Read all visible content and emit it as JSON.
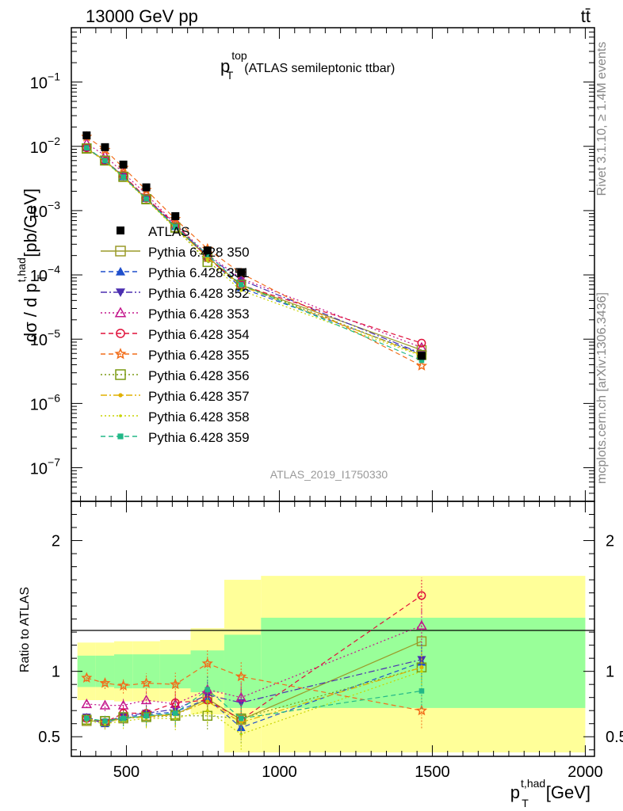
{
  "header": {
    "left": "13000 GeV pp",
    "right": "tt̄"
  },
  "side": {
    "rivet": "Rivet 3.1.10, ≥ 1.4M events",
    "mcplots": "mcplots.cern.ch [arXiv:1306.3436]"
  },
  "chart_data": {
    "type": "line",
    "title": "p_T^top (ATLAS semileptonic ttbar)",
    "title_main": "p",
    "title_sub": "T",
    "title_sup": "top",
    "title_rest": "(ATLAS semileptonic ttbar)",
    "analysis_label": "ATLAS_2019_I1750330",
    "xlabel": "p_T^{t,had} [GeV]",
    "xlabel_main": "p",
    "xlabel_sub": "T",
    "xlabel_sup": "t,had",
    "xlabel_unit": "[GeV]",
    "ylabel": "dσ / d p_T^{t,had} [pb/GeV]",
    "ylabel_pre": "dσ / d p",
    "ylabel_sub": "T",
    "ylabel_sup": "t,had",
    "ylabel_unit": "[pb/GeV]",
    "ratio_ylabel": "Ratio to ATLAS",
    "xlim": [
      320,
      2030
    ],
    "ylim_log": [
      3e-08,
      0.7
    ],
    "ratio_ylim": [
      0.35,
      2.3
    ],
    "x_ticks": [
      500,
      1000,
      1500,
      2000
    ],
    "x_tick_labels": [
      "500",
      "1000",
      "1500",
      "2000"
    ],
    "y_ticks": [
      1e-07,
      1e-06,
      1e-05,
      0.0001,
      0.001,
      0.01,
      0.1
    ],
    "y_tick_bases": [
      "10",
      "10",
      "10",
      "10",
      "10",
      "10",
      "10"
    ],
    "y_tick_exps": [
      "−7",
      "−6",
      "−5",
      "−4",
      "−3",
      "−2",
      "−1"
    ],
    "ratio_ticks": [
      0.5,
      1,
      2
    ],
    "ratio_tick_labels": [
      "0.5",
      "1",
      "2"
    ],
    "bin_edges": [
      340,
      400,
      460,
      520,
      610,
      710,
      820,
      940,
      2000
    ],
    "x": [
      370,
      430,
      490,
      565,
      660,
      765,
      875,
      1465
    ],
    "data": {
      "name": "ATLAS",
      "values": [
        0.0148,
        0.0097,
        0.0052,
        0.0023,
        0.00082,
        0.00024,
        0.00011,
        5.5e-06
      ],
      "band_inner": [
        [
          0.88,
          1.12
        ],
        [
          0.88,
          1.12
        ],
        [
          0.87,
          1.13
        ],
        [
          0.87,
          1.13
        ],
        [
          0.87,
          1.13
        ],
        [
          0.84,
          1.16
        ],
        [
          0.72,
          1.28
        ],
        [
          0.72,
          1.41
        ],
        [
          0.72,
          1.41
        ]
      ],
      "band_outer": [
        [
          0.78,
          1.22
        ],
        [
          0.78,
          1.22
        ],
        [
          0.77,
          1.23
        ],
        [
          0.77,
          1.23
        ],
        [
          0.77,
          1.24
        ],
        [
          0.67,
          1.33
        ],
        [
          0.38,
          1.7
        ],
        [
          0.38,
          1.73
        ],
        [
          0.38,
          1.73
        ]
      ]
    },
    "series": [
      {
        "name": "Pythia 6.428 350",
        "color": "#9a9a28",
        "marker": "square-open",
        "dash": "solid",
        "ratio": [
          0.62,
          0.62,
          0.64,
          0.66,
          0.67,
          0.79,
          0.63,
          1.23
        ]
      },
      {
        "name": "Pythia 6.428 351",
        "color": "#1f4fcc",
        "marker": "triangle-up",
        "dash": "dashed",
        "ratio": [
          0.64,
          0.6,
          0.65,
          0.67,
          0.69,
          0.79,
          0.57,
          1.07
        ]
      },
      {
        "name": "Pythia 6.428 352",
        "color": "#4b2fb0",
        "marker": "triangle-down",
        "dash": "dashdot",
        "ratio": [
          0.65,
          0.61,
          0.66,
          0.68,
          0.71,
          0.82,
          0.76,
          1.09
        ]
      },
      {
        "name": "Pythia 6.428 353",
        "color": "#c4168c",
        "marker": "triangle-open",
        "dash": "dotted",
        "ratio": [
          0.75,
          0.74,
          0.74,
          0.78,
          0.75,
          0.86,
          0.8,
          1.35
        ]
      },
      {
        "name": "Pythia 6.428 354",
        "color": "#e0103a",
        "marker": "circle-open",
        "dash": "dashed",
        "ratio": [
          0.64,
          0.61,
          0.68,
          0.68,
          0.76,
          0.78,
          0.63,
          1.58
        ]
      },
      {
        "name": "Pythia 6.428 355",
        "color": "#f26d1a",
        "marker": "star-open",
        "dash": "dashed",
        "ratio": [
          0.95,
          0.91,
          0.89,
          0.91,
          0.9,
          1.06,
          0.96,
          0.7
        ]
      },
      {
        "name": "Pythia 6.428 356",
        "color": "#7a9a12",
        "marker": "square-open",
        "dash": "dotted",
        "ratio": [
          0.63,
          0.62,
          0.65,
          0.65,
          0.66,
          0.66,
          0.64,
          1.03
        ]
      },
      {
        "name": "Pythia 6.428 357",
        "color": "#e0b000",
        "marker": "dot",
        "dash": "dashdot",
        "ratio": [
          0.64,
          0.61,
          0.64,
          0.65,
          0.67,
          0.77,
          0.61,
          1.03
        ]
      },
      {
        "name": "Pythia 6.428 358",
        "color": "#c8d400",
        "marker": "dot-small",
        "dash": "dotted",
        "ratio": [
          0.62,
          0.6,
          0.62,
          0.64,
          0.64,
          0.7,
          0.52,
          1.0
        ]
      },
      {
        "name": "Pythia 6.428 359",
        "color": "#22b887",
        "marker": "square-filled",
        "dash": "dashed",
        "ratio": [
          0.64,
          0.62,
          0.64,
          0.66,
          0.68,
          0.86,
          0.64,
          0.85
        ]
      }
    ],
    "colors": {
      "band_inner": "#99ff99",
      "band_outer": "#ffff99",
      "analysis_label": "#999999",
      "side_text": "#888888"
    }
  }
}
